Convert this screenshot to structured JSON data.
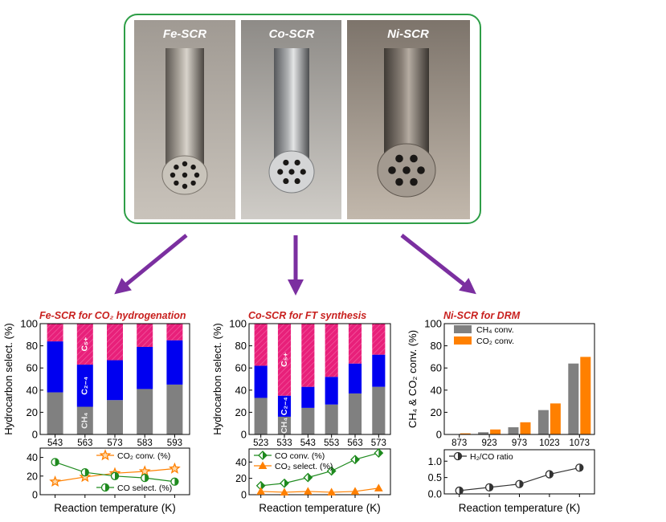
{
  "photos": [
    {
      "label": "Fe-SCR",
      "holes": 9
    },
    {
      "label": "Co-SCR",
      "holes": 7
    },
    {
      "label": "Ni-SCR",
      "holes": 7
    }
  ],
  "colors": {
    "frame": "#2e9e47",
    "arrow": "#7b2fa0",
    "title": "#c8201e",
    "ch4": "#808080",
    "c24": "#0000f0",
    "c5": "#e8207a",
    "co2": "#ff8000",
    "green": "#1e8a1e"
  },
  "chart_data": [
    {
      "type": "bar",
      "title": "Fe-SCR for CO₂ hydrogenation",
      "ylabel": "Hydrocarbon select. (%)",
      "xlabel": "Reaction temperature (K)",
      "stacked": true,
      "categories": [
        "543",
        "563",
        "573",
        "583",
        "593"
      ],
      "ylim": [
        0,
        100
      ],
      "yticks": [
        "0",
        "20",
        "40",
        "60",
        "80",
        "100"
      ],
      "series": [
        {
          "name": "CH₄",
          "values": [
            38,
            25,
            31,
            41,
            45
          ]
        },
        {
          "name": "C₂₋₄",
          "values": [
            46,
            38,
            36,
            38,
            40
          ]
        },
        {
          "name": "C₅₊",
          "values": [
            16,
            37,
            33,
            21,
            15
          ]
        }
      ],
      "label_bar": 1,
      "lower": {
        "type": "line",
        "ylim": [
          0,
          50
        ],
        "yticks": [
          "0",
          "20",
          "40"
        ],
        "series": [
          {
            "name": "CO₂ conv. (%)",
            "marker": "star",
            "color": "#ff8000",
            "values": [
              14,
              19,
              23,
              25,
              28
            ]
          },
          {
            "name": "CO select. (%)",
            "marker": "half-circle",
            "color": "#1e8a1e",
            "values": [
              35,
              24,
              20,
              18,
              14
            ]
          }
        ]
      }
    },
    {
      "type": "bar",
      "title": "Co-SCR for FT synthesis",
      "ylabel": "Hydrocarbon select. (%)",
      "xlabel": "Reaction temperature (K)",
      "stacked": true,
      "categories": [
        "523",
        "533",
        "543",
        "553",
        "563",
        "573"
      ],
      "ylim": [
        0,
        100
      ],
      "yticks": [
        "0",
        "20",
        "40",
        "60",
        "80",
        "100"
      ],
      "series": [
        {
          "name": "CH₄",
          "values": [
            33,
            16,
            24,
            27,
            37,
            43
          ]
        },
        {
          "name": "C₂₋₄",
          "values": [
            29,
            19,
            19,
            25,
            27,
            29
          ]
        },
        {
          "name": "C₅₊",
          "values": [
            38,
            65,
            57,
            48,
            36,
            28
          ]
        }
      ],
      "label_bar": 1,
      "lower": {
        "type": "line",
        "ylim": [
          0,
          56
        ],
        "yticks": [
          "0",
          "20",
          "40"
        ],
        "series": [
          {
            "name": "CO conv. (%)",
            "marker": "half-diamond",
            "color": "#1e8a1e",
            "values": [
              11,
              14,
              21,
              29,
              43,
              51
            ]
          },
          {
            "name": "CO₂ select. (%)",
            "marker": "half-triangle",
            "color": "#ff8000",
            "values": [
              4,
              3,
              4,
              3,
              4,
              8
            ]
          }
        ]
      }
    },
    {
      "type": "bar",
      "title": "Ni-SCR for DRM",
      "ylabel": "CH₄  &  CO₂ conv. (%)",
      "xlabel": "Reaction temperature (K)",
      "stacked": false,
      "categories": [
        "873",
        "923",
        "973",
        "1023",
        "1073"
      ],
      "ylim": [
        0,
        100
      ],
      "yticks": [
        "0",
        "20",
        "40",
        "60",
        "80",
        "100"
      ],
      "legend": "top-left",
      "series": [
        {
          "name": "CH₄ conv.",
          "values": [
            0,
            2,
            6.5,
            22,
            64
          ]
        },
        {
          "name": "CO₂ conv.",
          "values": [
            1,
            4.5,
            11,
            28,
            70
          ]
        }
      ],
      "lower": {
        "type": "line",
        "ylim": [
          0,
          1.35
        ],
        "yticks": [
          "0.0",
          "0.5",
          "1.0"
        ],
        "series": [
          {
            "name": "H₂/CO ratio",
            "marker": "half-circle",
            "color": "#333333",
            "values": [
              0.1,
              0.2,
              0.3,
              0.6,
              0.8
            ]
          }
        ]
      }
    }
  ]
}
